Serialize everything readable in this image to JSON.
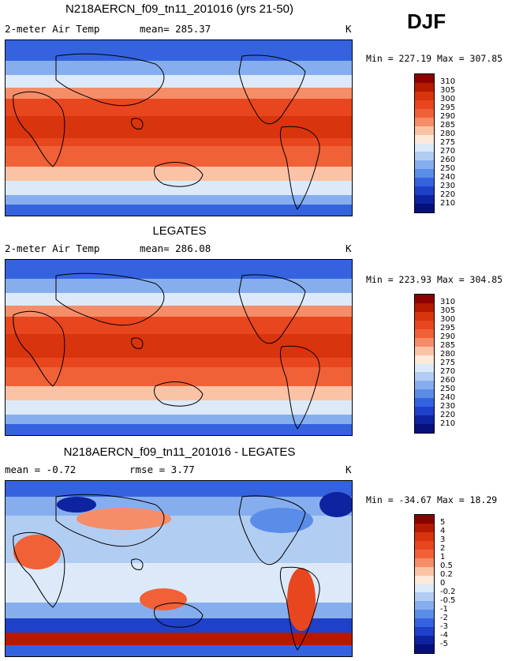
{
  "season": "DJF",
  "panels": [
    {
      "title": "N218AERCN_f09_tn11_201016 (yrs 21-50)",
      "left_label": "2-meter Air Temp",
      "center_label": "mean= 285.37",
      "units": "K",
      "minmax": "Min = 227.19 Max = 307.85",
      "colorbar_labels": [
        "310",
        "305",
        "300",
        "295",
        "290",
        "285",
        "280",
        "275",
        "270",
        "260",
        "250",
        "240",
        "230",
        "220",
        "210"
      ],
      "colors": [
        "#8b0000",
        "#b51a00",
        "#d8340d",
        "#e8461e",
        "#f06138",
        "#f58d68",
        "#fbc3a6",
        "#fde9d9",
        "#dce9f8",
        "#b2cdf2",
        "#86aeee",
        "#5a8de8",
        "#3563df",
        "#1f40c8",
        "#0e23a0",
        "#06107a"
      ]
    },
    {
      "title": "LEGATES",
      "left_label": "2-meter Air Temp",
      "center_label": "mean= 286.08",
      "units": "K",
      "minmax": "Min = 223.93 Max = 304.85",
      "colorbar_labels": [
        "310",
        "305",
        "300",
        "295",
        "290",
        "285",
        "280",
        "275",
        "270",
        "260",
        "250",
        "240",
        "230",
        "220",
        "210"
      ],
      "colors": [
        "#8b0000",
        "#b51a00",
        "#d8340d",
        "#e8461e",
        "#f06138",
        "#f58d68",
        "#fbc3a6",
        "#fde9d9",
        "#dce9f8",
        "#b2cdf2",
        "#86aeee",
        "#5a8de8",
        "#3563df",
        "#1f40c8",
        "#0e23a0",
        "#06107a"
      ]
    },
    {
      "title": "N218AERCN_f09_tn11_201016 - LEGATES",
      "left_label": "mean =   -0.72",
      "center_label": "rmse =    3.77",
      "units": "K",
      "minmax": "Min = -34.67 Max =  18.29",
      "colorbar_labels": [
        "5",
        "4",
        "3",
        "2",
        "1",
        "0.5",
        "0.2",
        "0",
        "-0.2",
        "-0.5",
        "-1",
        "-2",
        "-3",
        "-4",
        "-5"
      ],
      "colors": [
        "#8b0000",
        "#b51a00",
        "#d8340d",
        "#e8461e",
        "#f06138",
        "#f58d68",
        "#fbc3a6",
        "#fde9d9",
        "#dce9f8",
        "#b2cdf2",
        "#86aeee",
        "#5a8de8",
        "#3563df",
        "#1f40c8",
        "#0e23a0",
        "#06107a"
      ]
    }
  ]
}
